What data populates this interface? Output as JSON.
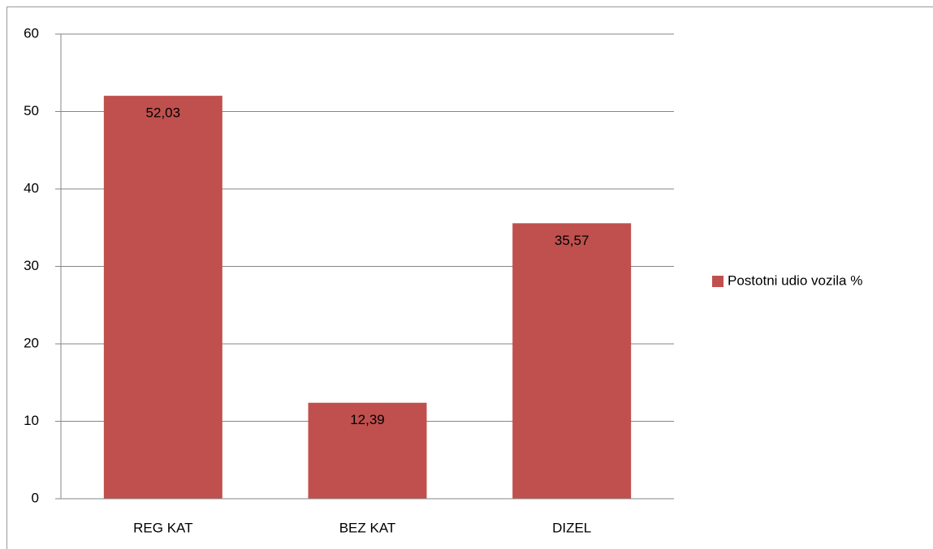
{
  "chart_data": {
    "type": "bar",
    "categories": [
      "REG KAT",
      "BEZ KAT",
      "DIZEL"
    ],
    "series": [
      {
        "name": "Postotni udio vozila %",
        "color": "#c0504d",
        "values": [
          52.03,
          12.39,
          35.57
        ],
        "value_labels": [
          "52,03",
          "12,39",
          "35,57"
        ]
      }
    ],
    "ylim": [
      0,
      60
    ],
    "yticks": [
      0,
      10,
      20,
      30,
      40,
      50,
      60
    ],
    "grid": true,
    "legend": "right"
  }
}
